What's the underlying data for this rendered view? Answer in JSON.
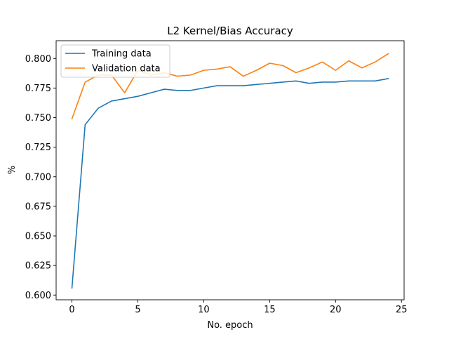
{
  "chart_data": {
    "type": "line",
    "title": "L2 Kernel/Bias Accuracy",
    "xlabel": "No. epoch",
    "ylabel": "%",
    "xlim": [
      -1.2,
      25.2
    ],
    "ylim": [
      0.596,
      0.815
    ],
    "xticks": [
      0,
      5,
      10,
      15,
      20,
      25
    ],
    "yticks": [
      0.6,
      0.625,
      0.65,
      0.675,
      0.7,
      0.725,
      0.75,
      0.775,
      0.8
    ],
    "xtick_labels": [
      "0",
      "5",
      "10",
      "15",
      "20",
      "25"
    ],
    "ytick_labels": [
      "0.600",
      "0.625",
      "0.650",
      "0.675",
      "0.700",
      "0.725",
      "0.750",
      "0.775",
      "0.800"
    ],
    "grid": false,
    "legend_position": "top-left",
    "x": [
      0,
      1,
      2,
      3,
      4,
      5,
      6,
      7,
      8,
      9,
      10,
      11,
      12,
      13,
      14,
      15,
      16,
      17,
      18,
      19,
      20,
      21,
      22,
      23,
      24
    ],
    "series": [
      {
        "name": "Training data",
        "color": "#1f77b4",
        "values": [
          0.606,
          0.744,
          0.758,
          0.764,
          0.766,
          0.768,
          0.771,
          0.774,
          0.773,
          0.773,
          0.775,
          0.777,
          0.777,
          0.777,
          0.778,
          0.779,
          0.78,
          0.781,
          0.779,
          0.78,
          0.78,
          0.781,
          0.781,
          0.781,
          0.783
        ]
      },
      {
        "name": "Validation data",
        "color": "#ff7f0e",
        "values": [
          0.749,
          0.78,
          0.786,
          0.786,
          0.771,
          0.79,
          0.786,
          0.788,
          0.785,
          0.786,
          0.79,
          0.791,
          0.793,
          0.785,
          0.79,
          0.796,
          0.794,
          0.788,
          0.792,
          0.797,
          0.79,
          0.798,
          0.792,
          0.797,
          0.804
        ]
      }
    ]
  }
}
